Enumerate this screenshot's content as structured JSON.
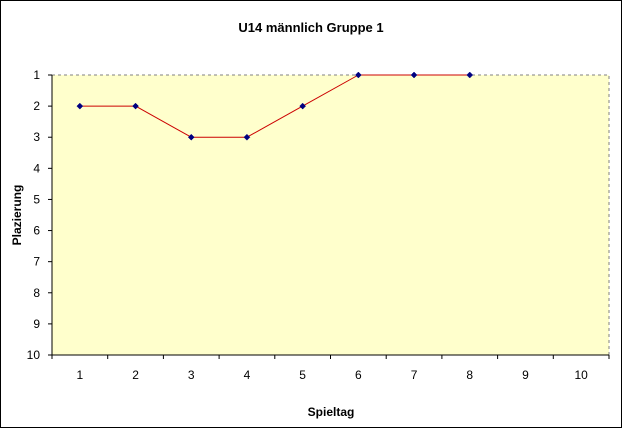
{
  "chart_data": {
    "type": "line",
    "title": "U14 männlich Gruppe 1",
    "xlabel": "Spieltag",
    "ylabel": "Plazierung",
    "x_ticks": [
      "1",
      "2",
      "3",
      "4",
      "5",
      "6",
      "7",
      "8",
      "9",
      "10"
    ],
    "y_ticks": [
      "1",
      "2",
      "3",
      "4",
      "5",
      "6",
      "7",
      "8",
      "9",
      "10"
    ],
    "xlim": [
      0.5,
      10.5
    ],
    "ylim": [
      1,
      10
    ],
    "y_reversed": true,
    "grid": false,
    "legend": "none",
    "series": [
      {
        "x": [
          1,
          2,
          3,
          4,
          5,
          6,
          7,
          8
        ],
        "values": [
          2,
          2,
          3,
          3,
          2,
          1,
          1,
          1
        ]
      }
    ],
    "colors": {
      "plot_background": "#FFFFCC",
      "line": "#CC0000",
      "marker": "#000080",
      "plot_border": "#808080"
    }
  }
}
